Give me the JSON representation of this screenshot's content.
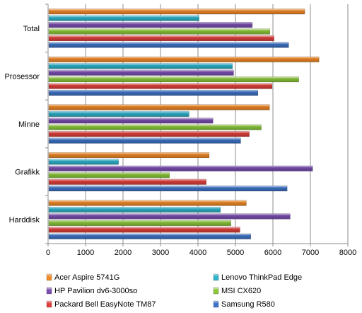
{
  "chart_data": {
    "type": "bar",
    "orientation": "horizontal",
    "categories": [
      "Total",
      "Prosessor",
      "Minne",
      "Grafikk",
      "Harddisk"
    ],
    "x_ticks": [
      0,
      1000,
      2000,
      3000,
      4000,
      5000,
      6000,
      7000,
      8000
    ],
    "xlim": [
      0,
      8000
    ],
    "grid": true,
    "legend_position": "bottom",
    "series": [
      {
        "name": "Acer Aspire 5741G",
        "color": "#F28A28",
        "values": [
          6850,
          7230,
          5910,
          4300,
          5290
        ]
      },
      {
        "name": "Lenovo ThinkPad Edge",
        "color": "#2FB3CC",
        "values": [
          4030,
          4920,
          3760,
          1880,
          4600
        ]
      },
      {
        "name": "HP Pavilion dv6-3000so",
        "color": "#7B4FB2",
        "values": [
          5450,
          4950,
          4400,
          7060,
          6460
        ]
      },
      {
        "name": "MSI CX620",
        "color": "#8CC83A",
        "values": [
          5920,
          6690,
          5690,
          3240,
          4880
        ]
      },
      {
        "name": "Packard Bell EasyNote  TM87",
        "color": "#E0403C",
        "values": [
          6030,
          5980,
          5370,
          4220,
          5120
        ]
      },
      {
        "name": "Samsung R580",
        "color": "#3E74C8",
        "values": [
          6420,
          5600,
          5140,
          6380,
          5410
        ]
      }
    ]
  }
}
